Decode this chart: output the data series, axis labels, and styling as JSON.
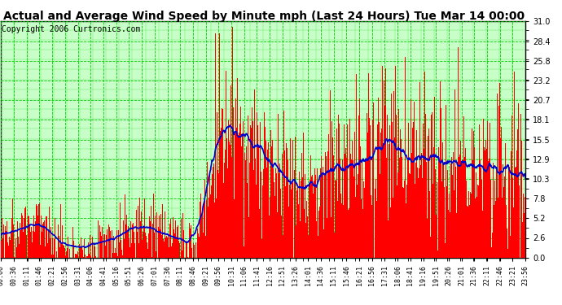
{
  "title": "Actual and Average Wind Speed by Minute mph (Last 24 Hours) Tue Mar 14 00:00",
  "copyright": "Copyright 2006 Curtronics.com",
  "yticks": [
    0.0,
    2.6,
    5.2,
    7.8,
    10.3,
    12.9,
    15.5,
    18.1,
    20.7,
    23.2,
    25.8,
    28.4,
    31.0
  ],
  "ymax": 31.0,
  "ymin": 0.0,
  "bg_color": "#ffffff",
  "bar_color": "#ff0000",
  "avg_color": "#0000cd",
  "grid_major_color": "#00cc00",
  "grid_minor_color": "#00cc00",
  "plot_bg": "#c8ffc8",
  "title_bg": "#ffffff",
  "border_color": "#000000",
  "n_minutes": 1440,
  "xtick_labels": [
    "00:00",
    "00:36",
    "01:11",
    "01:46",
    "02:21",
    "02:56",
    "03:31",
    "04:06",
    "04:41",
    "05:16",
    "05:51",
    "06:26",
    "07:01",
    "07:36",
    "08:11",
    "08:46",
    "09:21",
    "09:56",
    "10:31",
    "11:06",
    "11:41",
    "12:16",
    "12:51",
    "13:26",
    "14:01",
    "14:36",
    "15:11",
    "15:46",
    "16:21",
    "16:56",
    "17:31",
    "18:06",
    "18:41",
    "19:16",
    "19:51",
    "20:26",
    "21:01",
    "21:36",
    "22:11",
    "22:46",
    "23:21",
    "23:56"
  ],
  "title_fontsize": 10,
  "copyright_fontsize": 7,
  "tick_fontsize": 7,
  "xtick_fontsize": 6
}
